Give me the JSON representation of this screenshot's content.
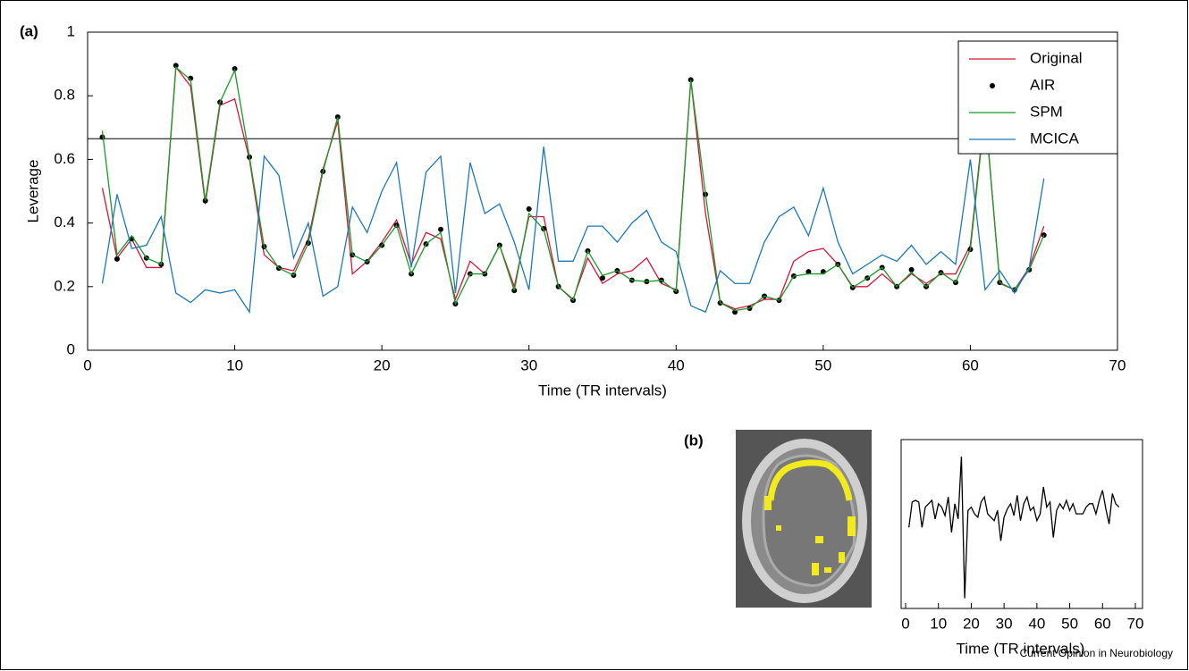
{
  "chart_data": [
    {
      "type": "line",
      "panel_label": "(a)",
      "ylabel": "Leverage",
      "xlabel": "Time (TR intervals)",
      "xlim": [
        0,
        70
      ],
      "xticks": [
        0,
        10,
        20,
        30,
        40,
        50,
        60,
        70
      ],
      "ylim": [
        0,
        1
      ],
      "yticks": [
        0,
        0.2,
        0.4,
        0.6,
        0.8,
        1
      ],
      "threshold": 0.665,
      "threshold_color": "#000000",
      "legend": "upper right",
      "x": [
        1,
        2,
        3,
        4,
        5,
        6,
        7,
        8,
        9,
        10,
        11,
        12,
        13,
        14,
        15,
        16,
        17,
        18,
        19,
        20,
        21,
        22,
        23,
        24,
        25,
        26,
        27,
        28,
        29,
        30,
        31,
        32,
        33,
        34,
        35,
        36,
        37,
        38,
        39,
        40,
        41,
        42,
        43,
        44,
        45,
        46,
        47,
        48,
        49,
        50,
        51,
        52,
        53,
        54,
        55,
        56,
        57,
        58,
        59,
        60,
        61,
        62,
        63,
        64,
        65
      ],
      "series": [
        {
          "name": "Original",
          "color": "#d7143c",
          "mode": "lines",
          "values": [
            0.51,
            0.29,
            0.35,
            0.26,
            0.26,
            0.89,
            0.83,
            0.46,
            0.77,
            0.79,
            0.6,
            0.3,
            0.26,
            0.25,
            0.35,
            0.57,
            0.72,
            0.24,
            0.28,
            0.34,
            0.41,
            0.27,
            0.37,
            0.35,
            0.16,
            0.28,
            0.24,
            0.33,
            0.2,
            0.42,
            0.42,
            0.2,
            0.16,
            0.29,
            0.21,
            0.24,
            0.25,
            0.29,
            0.21,
            0.19,
            0.85,
            0.43,
            0.15,
            0.13,
            0.14,
            0.16,
            0.16,
            0.28,
            0.31,
            0.32,
            0.27,
            0.2,
            0.2,
            0.24,
            0.2,
            0.24,
            0.21,
            0.24,
            0.24,
            0.33,
            0.76,
            0.21,
            0.19,
            0.26,
            0.39
          ]
        },
        {
          "name": "AIR",
          "color": "#000000",
          "mode": "markers",
          "values": [
            0.67,
            0.287,
            0.35,
            0.29,
            0.27,
            0.895,
            0.855,
            0.47,
            0.78,
            0.885,
            0.607,
            0.326,
            0.258,
            0.236,
            0.337,
            0.562,
            0.733,
            0.3,
            0.278,
            0.33,
            0.393,
            0.24,
            0.334,
            0.38,
            0.146,
            0.24,
            0.24,
            0.33,
            0.188,
            0.444,
            0.382,
            0.2,
            0.157,
            0.312,
            0.227,
            0.25,
            0.22,
            0.216,
            0.22,
            0.185,
            0.85,
            0.49,
            0.149,
            0.12,
            0.132,
            0.17,
            0.157,
            0.233,
            0.247,
            0.247,
            0.27,
            0.197,
            0.227,
            0.26,
            0.2,
            0.253,
            0.2,
            0.244,
            0.213,
            0.317,
            0.75,
            0.213,
            0.19,
            0.253,
            0.362
          ]
        },
        {
          "name": "SPM",
          "color": "#1a9a2a",
          "mode": "lines",
          "values": [
            0.69,
            0.3,
            0.36,
            0.29,
            0.27,
            0.89,
            0.85,
            0.47,
            0.78,
            0.88,
            0.607,
            0.326,
            0.258,
            0.236,
            0.337,
            0.562,
            0.733,
            0.3,
            0.278,
            0.33,
            0.393,
            0.24,
            0.334,
            0.37,
            0.146,
            0.24,
            0.24,
            0.33,
            0.188,
            0.43,
            0.38,
            0.2,
            0.157,
            0.312,
            0.235,
            0.25,
            0.22,
            0.216,
            0.22,
            0.185,
            0.85,
            0.49,
            0.149,
            0.125,
            0.132,
            0.17,
            0.157,
            0.233,
            0.24,
            0.24,
            0.27,
            0.197,
            0.227,
            0.26,
            0.2,
            0.245,
            0.2,
            0.244,
            0.213,
            0.317,
            0.75,
            0.213,
            0.19,
            0.253,
            0.362
          ]
        },
        {
          "name": "MCICA",
          "color": "#1f78b4",
          "mode": "lines",
          "values": [
            0.21,
            0.49,
            0.32,
            0.33,
            0.42,
            0.18,
            0.15,
            0.19,
            0.18,
            0.19,
            0.12,
            0.61,
            0.55,
            0.29,
            0.4,
            0.17,
            0.2,
            0.45,
            0.37,
            0.5,
            0.59,
            0.26,
            0.56,
            0.61,
            0.18,
            0.59,
            0.43,
            0.46,
            0.34,
            0.19,
            0.64,
            0.28,
            0.28,
            0.39,
            0.39,
            0.34,
            0.4,
            0.44,
            0.34,
            0.31,
            0.14,
            0.12,
            0.25,
            0.21,
            0.21,
            0.34,
            0.42,
            0.45,
            0.36,
            0.51,
            0.34,
            0.24,
            0.27,
            0.3,
            0.28,
            0.33,
            0.27,
            0.31,
            0.27,
            0.6,
            0.19,
            0.25,
            0.18,
            0.26,
            0.54
          ]
        }
      ]
    },
    {
      "type": "line",
      "panel_label": "(b)",
      "xlabel": "Time (TR intervals)",
      "xlim": [
        0,
        70
      ],
      "xticks": [
        0,
        10,
        20,
        30,
        40,
        50,
        60,
        70
      ],
      "ylim": [
        0,
        1
      ],
      "color": "#000000",
      "x": [
        1,
        2,
        3,
        4,
        5,
        6,
        7,
        8,
        9,
        10,
        11,
        12,
        13,
        14,
        15,
        16,
        17,
        18,
        19,
        20,
        21,
        22,
        23,
        24,
        25,
        26,
        27,
        28,
        29,
        30,
        31,
        32,
        33,
        34,
        35,
        36,
        37,
        38,
        39,
        40,
        41,
        42,
        43,
        44,
        45,
        46,
        47,
        48,
        49,
        50,
        51,
        52,
        53,
        54,
        55,
        56,
        57,
        58,
        59,
        60,
        61,
        62,
        63,
        64,
        65
      ],
      "values": [
        0.48,
        0.63,
        0.64,
        0.63,
        0.48,
        0.6,
        0.62,
        0.64,
        0.53,
        0.62,
        0.6,
        0.55,
        0.66,
        0.45,
        0.62,
        0.53,
        0.9,
        0.06,
        0.58,
        0.6,
        0.56,
        0.54,
        0.63,
        0.66,
        0.56,
        0.54,
        0.52,
        0.58,
        0.4,
        0.54,
        0.59,
        0.62,
        0.55,
        0.67,
        0.52,
        0.62,
        0.66,
        0.58,
        0.6,
        0.52,
        0.56,
        0.72,
        0.6,
        0.63,
        0.42,
        0.58,
        0.62,
        0.59,
        0.64,
        0.58,
        0.62,
        0.56,
        0.56,
        0.56,
        0.6,
        0.62,
        0.62,
        0.56,
        0.64,
        0.7,
        0.59,
        0.5,
        0.68,
        0.62,
        0.6
      ]
    }
  ],
  "credit": "Current Opinion in Neurobiology"
}
